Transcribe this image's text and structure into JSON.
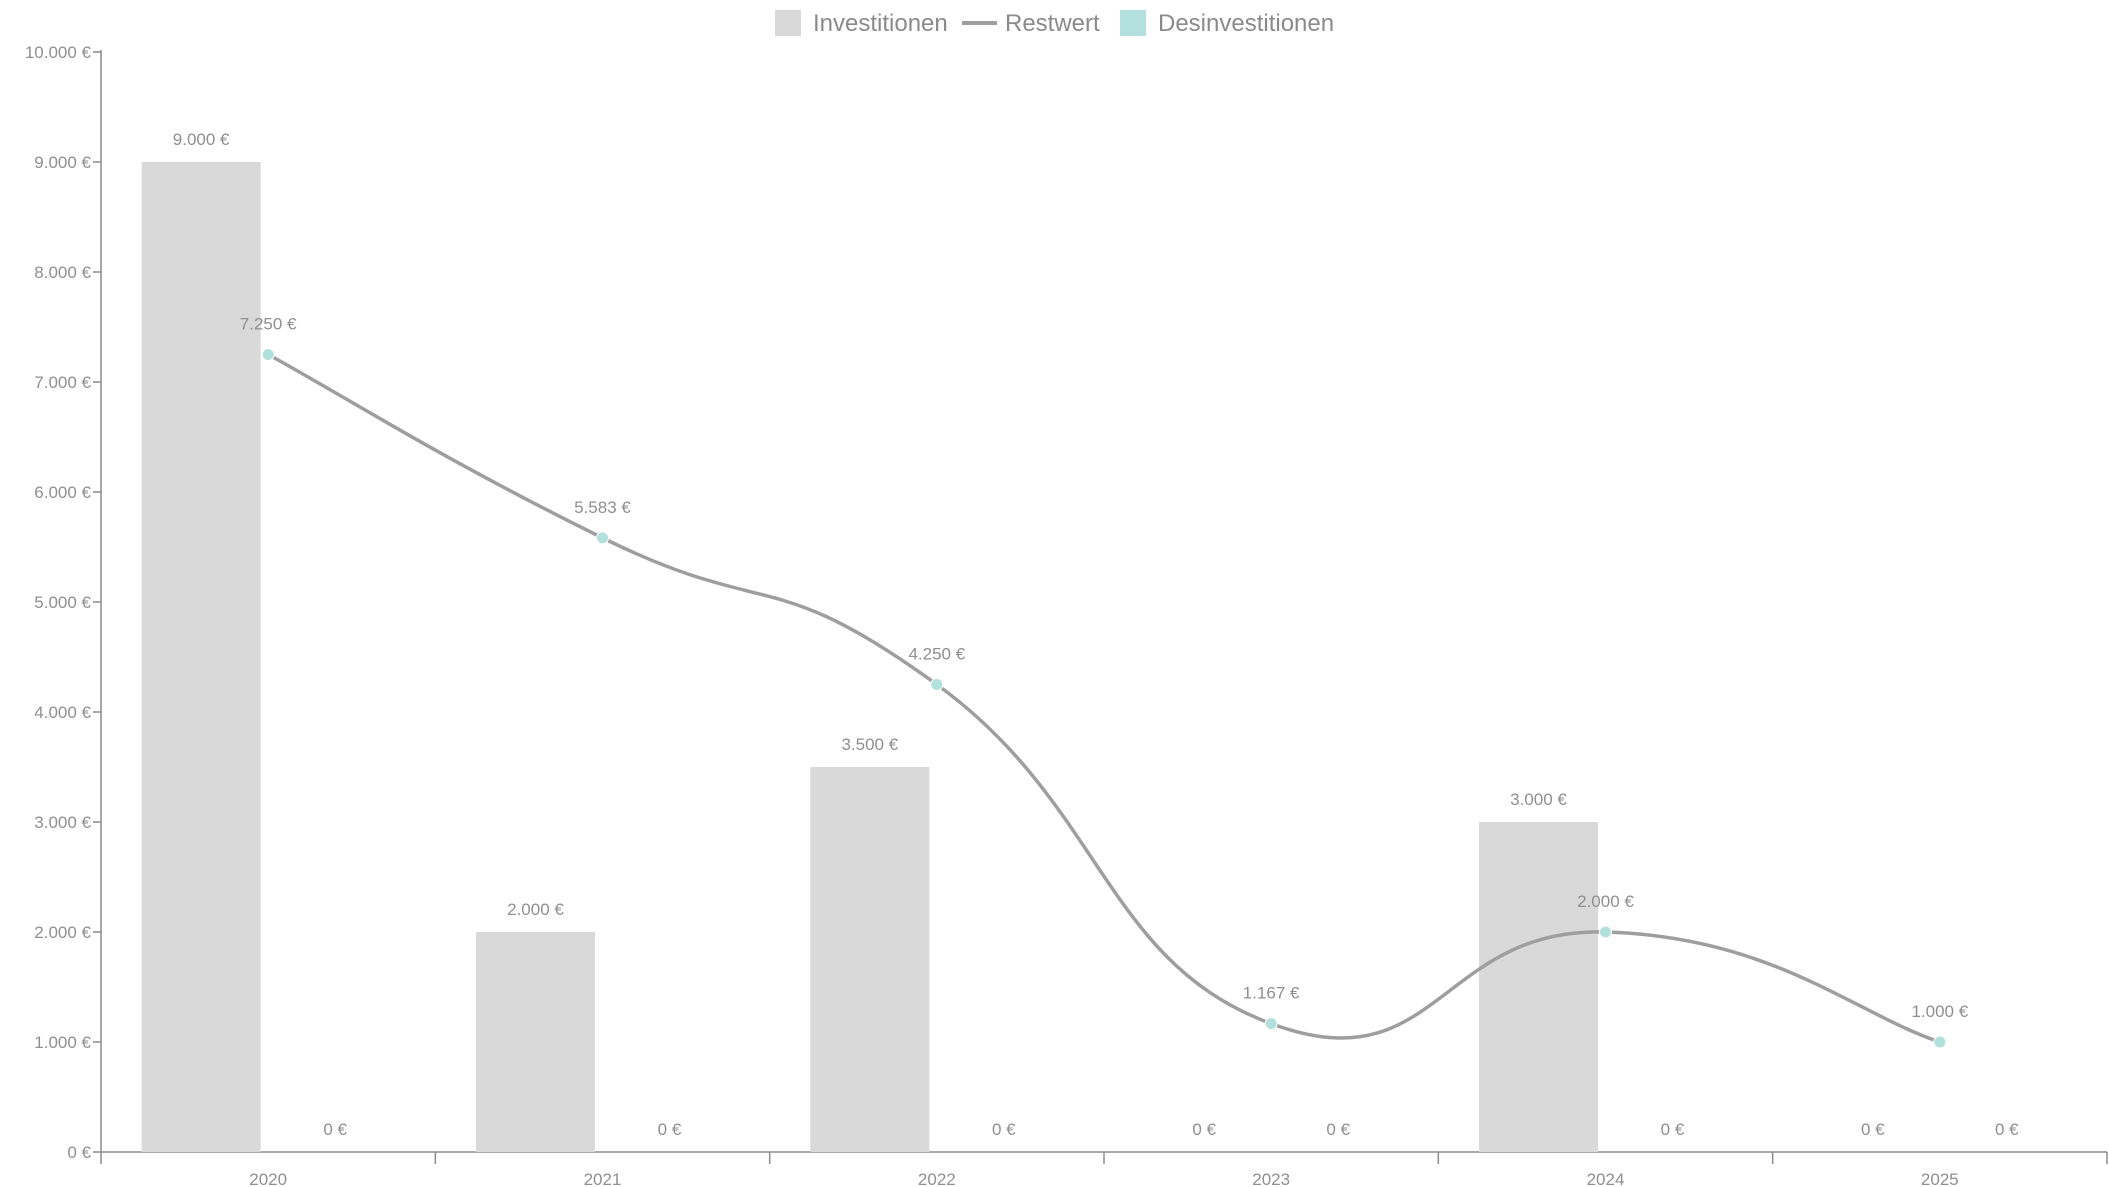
{
  "chart_data": {
    "type": "bar",
    "categories": [
      "2020",
      "2021",
      "2022",
      "2023",
      "2024",
      "2025"
    ],
    "series": [
      {
        "name": "Investitionen",
        "kind": "bar",
        "color": "#d9d9d9",
        "values": [
          9000,
          2000,
          3500,
          null,
          3000,
          null
        ],
        "labels": [
          "9.000 €",
          "2.000 €",
          "3.500 €",
          "0 €",
          "3.000 €",
          "0 €"
        ]
      },
      {
        "name": "Restwert",
        "kind": "line",
        "color": "#9e9e9e",
        "marker_color": "#b2e0dc",
        "values": [
          7250,
          5583,
          4250,
          1167,
          2000,
          1000
        ],
        "labels": [
          "7.250 €",
          "5.583 €",
          "4.250 €",
          "1.167 €",
          "2.000 €",
          "1.000 €"
        ]
      },
      {
        "name": "Desinvestitionen",
        "kind": "bar",
        "color": "#b2e0dc",
        "values": [
          0,
          0,
          0,
          0,
          0,
          0
        ],
        "labels": [
          "0 €",
          "0 €",
          "0 €",
          "0 €",
          "0 €",
          "0 €"
        ]
      }
    ],
    "y_ticks": [
      "0 €",
      "1.000 €",
      "2.000 €",
      "3.000 €",
      "4.000 €",
      "5.000 €",
      "6.000 €",
      "7.000 €",
      "8.000 €",
      "9.000 €",
      "10.000 €"
    ],
    "ylim": [
      0,
      10000
    ],
    "grid": false,
    "legend_position": "top-center",
    "title": "",
    "xlabel": "",
    "ylabel": ""
  }
}
